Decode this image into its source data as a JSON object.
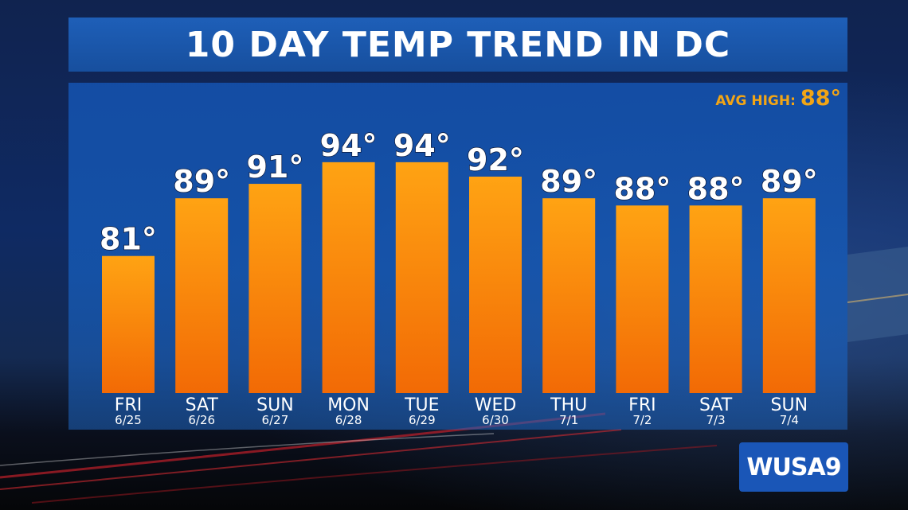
{
  "title": "10 DAY TEMP TREND IN DC",
  "avg_high": {
    "label": "AVG HIGH:",
    "value": "88°"
  },
  "logo_text": "WUSA9",
  "colors": {
    "bar_top": "#ffa313",
    "bar_bottom": "#f26a05",
    "accent": "#f2a515",
    "title_bg": "#1e5fb8"
  },
  "chart_data": {
    "type": "bar",
    "categories": [
      "FRI",
      "SAT",
      "SUN",
      "MON",
      "TUE",
      "WED",
      "THU",
      "FRI",
      "SAT",
      "SUN"
    ],
    "dates": [
      "6/25",
      "6/26",
      "6/27",
      "6/28",
      "6/29",
      "6/30",
      "7/1",
      "7/2",
      "7/3",
      "7/4"
    ],
    "values": [
      81,
      89,
      91,
      94,
      94,
      92,
      89,
      88,
      88,
      89
    ],
    "value_labels": [
      "81°",
      "89°",
      "91°",
      "94°",
      "94°",
      "92°",
      "89°",
      "88°",
      "88°",
      "89°"
    ],
    "title": "10 DAY TEMP TREND IN DC",
    "ylim": [
      62,
      99.5
    ]
  }
}
